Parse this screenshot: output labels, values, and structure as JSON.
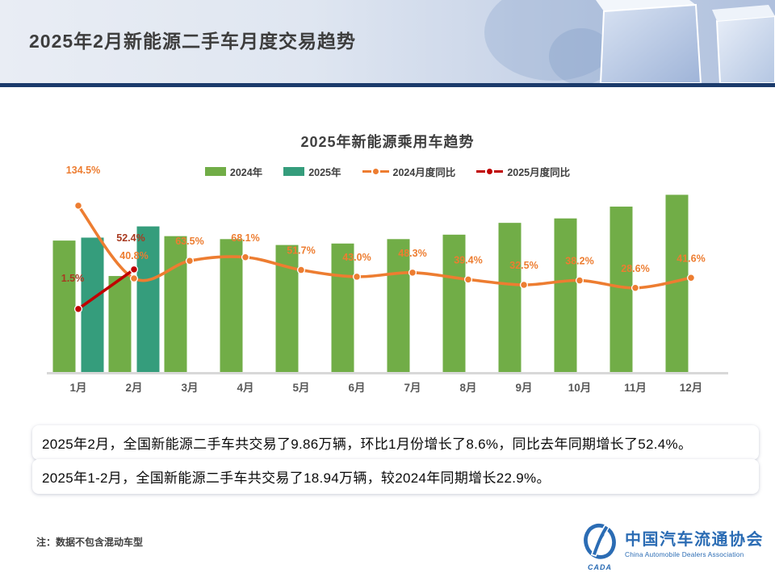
{
  "header": {
    "title": "2025年2月新能源二手车月度交易趋势"
  },
  "chart_data": {
    "type": "bar+line combo",
    "title": "2025年新能源乘用车趋势",
    "categories": [
      "1月",
      "2月",
      "3月",
      "4月",
      "5月",
      "6月",
      "7月",
      "8月",
      "9月",
      "10月",
      "11月",
      "12月"
    ],
    "bar_unit": "万辆 (估算, bars unlabeled)",
    "y2_unit": "%",
    "y2lim": [
      0,
      150
    ],
    "grid": false,
    "legend_position": "top",
    "series": [
      {
        "name": "2024年",
        "type": "bar",
        "color": "#71ad47",
        "values": [
          8.9,
          6.5,
          9.2,
          9.0,
          8.6,
          8.7,
          9.0,
          9.3,
          10.1,
          10.4,
          11.2,
          12.0
        ]
      },
      {
        "name": "2025年",
        "type": "bar",
        "color": "#359d7c",
        "values": [
          9.1,
          9.86
        ]
      },
      {
        "name": "2024月度同比",
        "type": "line",
        "color": "#ed7d31",
        "label_color": "#ed7d31",
        "values": [
          134.5,
          40.8,
          63.5,
          68.1,
          51.7,
          43.0,
          48.3,
          39.4,
          32.5,
          38.2,
          28.6,
          41.6
        ],
        "labels": [
          "134.5%",
          "40.8%",
          "63.5%",
          "68.1%",
          "51.7%",
          "43.0%",
          "48.3%",
          "39.4%",
          "32.5%",
          "38.2%",
          "28.6%",
          "41.6%"
        ]
      },
      {
        "name": "2025月度同比",
        "type": "line",
        "color": "#c00000",
        "label_color": "#a83a20",
        "values": [
          1.5,
          52.4
        ],
        "labels": [
          "1.5%",
          "52.4%"
        ]
      }
    ]
  },
  "body": {
    "p1": "2025年2月，全国新能源二手车共交易了9.86万辆，环比1月份增长了8.6%，同比去年同期增长了52.4%。",
    "p2": "2025年1-2月，全国新能源二手车共交易了18.94万辆，较2024年同期增长22.9%。"
  },
  "note": "注：数据不包含混动车型",
  "logo": {
    "cn": "中国汽车流通协会",
    "en": "China Automobile Dealers Association",
    "abbr": "CADA"
  },
  "colors": {
    "header_rule": "#1b3a6b",
    "logo_blue": "#2b6cb4",
    "axis_line": "#d8d8d8",
    "tick_label": "#595959"
  }
}
